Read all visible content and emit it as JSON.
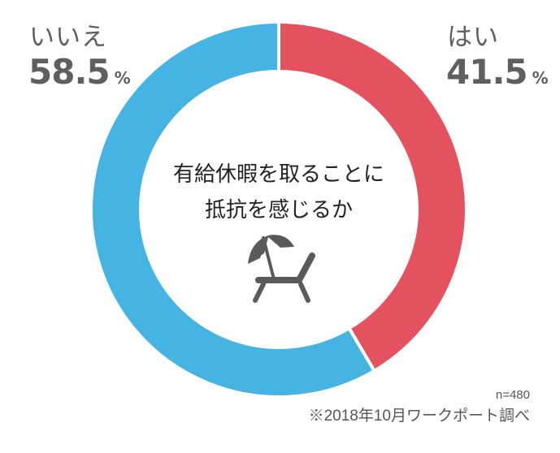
{
  "chart_data": {
    "type": "pie",
    "variant": "donut",
    "title": "有給休暇を取ることに抵抗を感じるか",
    "categories": [
      "はい",
      "いいえ"
    ],
    "values": [
      41.5,
      58.5
    ],
    "unit": "%",
    "colors": {
      "はい": "#e5525f",
      "いいえ": "#46b4e2"
    },
    "start_angle": "12 o'clock, clockwise",
    "annotations": [
      "n=480",
      "※2018年10月ワークポート調べ"
    ],
    "legend": "none (direct labels)"
  },
  "labels": {
    "no": {
      "word": "いいえ",
      "value": "58.5",
      "unit": "%"
    },
    "yes": {
      "word": "はい",
      "value": "41.5",
      "unit": "%"
    }
  },
  "center": {
    "line1": "有給休暇を取ることに",
    "line2": "抵抗を感じるか",
    "icon": "beach-umbrella-lounger-icon"
  },
  "footer": {
    "sample": "n=480",
    "source": "※2018年10月ワークポート調べ"
  },
  "colors": {
    "yes": "#e5525f",
    "no": "#46b4e2",
    "text": "#5f5f5f",
    "icon": "#5a5a5a"
  }
}
